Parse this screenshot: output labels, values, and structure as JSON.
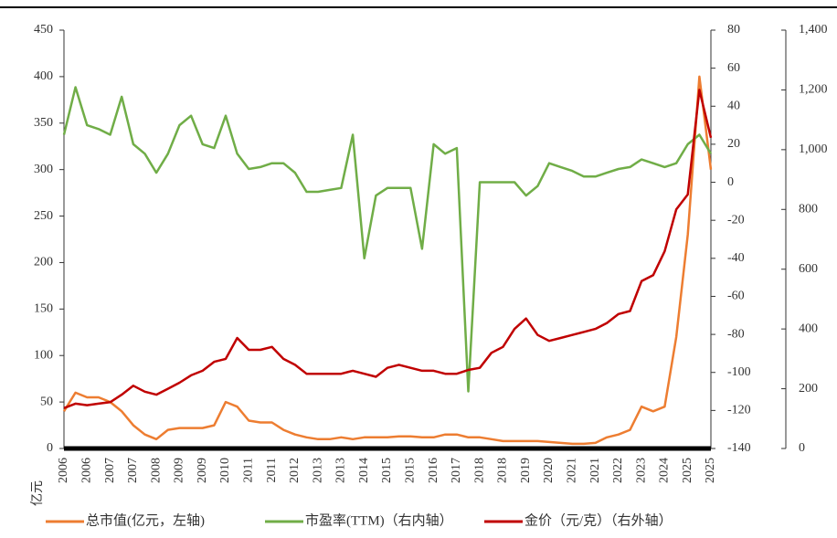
{
  "chart_data": {
    "type": "line",
    "y_axis_label": "亿元",
    "categories": [
      "2006",
      null,
      "2006",
      null,
      "2007",
      null,
      "2007",
      null,
      "2008",
      null,
      "2009",
      null,
      "2009",
      null,
      "2010",
      null,
      "2011",
      null,
      "2011",
      null,
      "2012",
      null,
      "2013",
      null,
      "2013",
      null,
      "2014",
      null,
      "2015",
      null,
      "2015",
      null,
      "2016",
      null,
      "2017",
      null,
      "2018",
      null,
      "2018",
      null,
      "2019",
      null,
      "2020",
      null,
      "2021",
      null,
      "2021",
      null,
      "2022",
      null,
      "2023",
      null,
      "2024",
      null,
      "2025",
      null,
      "2025"
    ],
    "series": [
      {
        "name": "总市值(亿元，左轴)",
        "color": "#ED7D31",
        "axis": "y",
        "values": [
          40,
          60,
          55,
          55,
          50,
          40,
          25,
          15,
          10,
          20,
          22,
          22,
          22,
          25,
          50,
          45,
          30,
          28,
          28,
          20,
          15,
          12,
          10,
          10,
          12,
          10,
          12,
          12,
          12,
          13,
          13,
          12,
          12,
          15,
          15,
          12,
          12,
          10,
          8,
          8,
          8,
          8,
          7,
          6,
          5,
          5,
          6,
          12,
          15,
          20,
          45,
          40,
          45,
          120,
          230,
          400,
          300
        ]
      },
      {
        "name": "市盈率(TTM)（右内轴）",
        "color": "#70AD47",
        "axis": "y2",
        "values": [
          25,
          50,
          30,
          28,
          25,
          45,
          20,
          15,
          5,
          15,
          30,
          35,
          20,
          18,
          35,
          15,
          7,
          8,
          10,
          10,
          5,
          -5,
          -5,
          -4,
          -3,
          25,
          -40,
          -7,
          -3,
          -3,
          -3,
          -35,
          20,
          15,
          18,
          -110,
          0,
          0,
          0,
          0,
          -7,
          -2,
          10,
          8,
          6,
          3,
          3,
          5,
          7,
          8,
          12,
          10,
          8,
          10,
          20,
          25,
          15
        ]
      },
      {
        "name": "金价（元/克）（右外轴）",
        "color": "#C00000",
        "axis": "y3",
        "values": [
          135,
          150,
          145,
          150,
          155,
          180,
          210,
          190,
          180,
          200,
          220,
          245,
          260,
          290,
          300,
          370,
          330,
          330,
          340,
          300,
          280,
          250,
          250,
          250,
          250,
          260,
          250,
          240,
          270,
          280,
          270,
          260,
          260,
          250,
          250,
          263,
          270,
          320,
          340,
          400,
          435,
          380,
          360,
          370,
          380,
          390,
          400,
          420,
          450,
          460,
          560,
          580,
          660,
          800,
          850,
          1200,
          1040
        ]
      }
    ],
    "ylim": [
      0,
      450
    ],
    "yticks": [
      0,
      50,
      100,
      150,
      200,
      250,
      300,
      350,
      400,
      450
    ],
    "y2lim": [
      -140,
      80
    ],
    "y2ticks": [
      -140,
      -120,
      -100,
      -80,
      -60,
      -40,
      -20,
      0,
      20,
      40,
      60,
      80
    ],
    "y3lim": [
      0,
      1400
    ],
    "y3ticks": [
      0,
      200,
      400,
      600,
      800,
      {
        "value": 1000,
        "label": "1,000"
      },
      {
        "value": 1200,
        "label": "1,200"
      },
      {
        "value": 1400,
        "label": "1,400"
      }
    ]
  }
}
